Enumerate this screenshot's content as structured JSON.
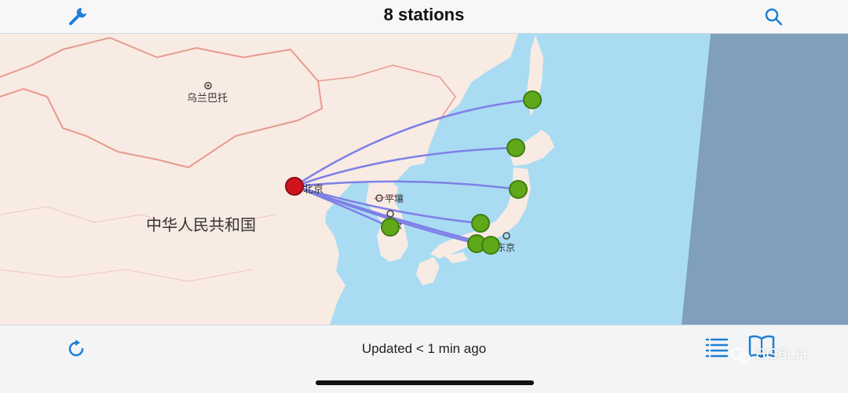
{
  "header": {
    "title": "8 stations",
    "left_icon": "wrench-icon",
    "right_icon": "search-icon"
  },
  "map": {
    "labels": {
      "ulaanbaatar": "乌兰巴托",
      "china": "中华人民共和国",
      "beijing": "北京",
      "pyongyang": "平壤",
      "seoul": "首尔",
      "tokyo": "东京"
    },
    "colors": {
      "land": "#f8ebe3",
      "sea": "#a9dcf3",
      "night": "#7f9fbc",
      "border": "#e79a8f",
      "path": "#7f80e6",
      "station": "#5fa81a",
      "home": "#d0141f"
    }
  },
  "footer": {
    "status": "Updated < 1 min ago",
    "refresh_icon": "refresh-icon",
    "list_icon": "list-icon",
    "book_icon": "book-icon",
    "watermark": "BG6LH"
  }
}
